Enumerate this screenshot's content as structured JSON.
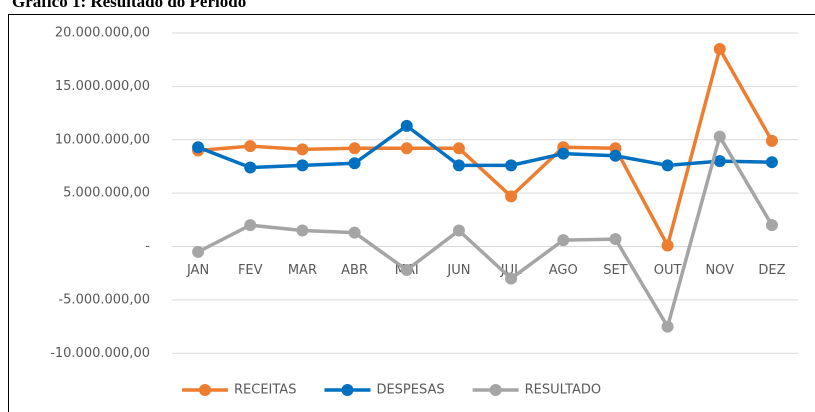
{
  "chart_data": {
    "type": "line",
    "title": "Gráfico 1: Resultado do Período",
    "categories": [
      "JAN",
      "FEV",
      "MAR",
      "ABR",
      "MAI",
      "JUN",
      "JUL",
      "AGO",
      "SET",
      "OUT",
      "NOV",
      "DEZ"
    ],
    "series": [
      {
        "name": "RECEITAS",
        "color": "#ed7d31",
        "values": [
          9000000,
          9400000,
          9100000,
          9200000,
          9200000,
          9200000,
          4700000,
          9300000,
          9200000,
          100000,
          18500000,
          9900000
        ]
      },
      {
        "name": "DESPESAS",
        "color": "#0070c0",
        "values": [
          9300000,
          7400000,
          7600000,
          7800000,
          11300000,
          7600000,
          7600000,
          8700000,
          8500000,
          7600000,
          8000000,
          7900000
        ]
      },
      {
        "name": "RESULTADO",
        "color": "#a5a5a5",
        "values": [
          -500000,
          2000000,
          1500000,
          1300000,
          -2200000,
          1500000,
          -3000000,
          600000,
          700000,
          -7500000,
          10300000,
          2000000
        ]
      }
    ],
    "ylim": [
      -12500000,
      20000000
    ],
    "yticks": [
      {
        "value": -10000000,
        "label": "-10.000.000,00"
      },
      {
        "value": -5000000,
        "label": "-5.000.000,00"
      },
      {
        "value": 0,
        "label": "-"
      },
      {
        "value": 5000000,
        "label": "5.000.000,00"
      },
      {
        "value": 10000000,
        "label": "10.000.000,00"
      },
      {
        "value": 15000000,
        "label": "15.000.000,00"
      },
      {
        "value": 20000000,
        "label": "20.000.000,00"
      }
    ],
    "grid": true,
    "legend": "bottom"
  }
}
